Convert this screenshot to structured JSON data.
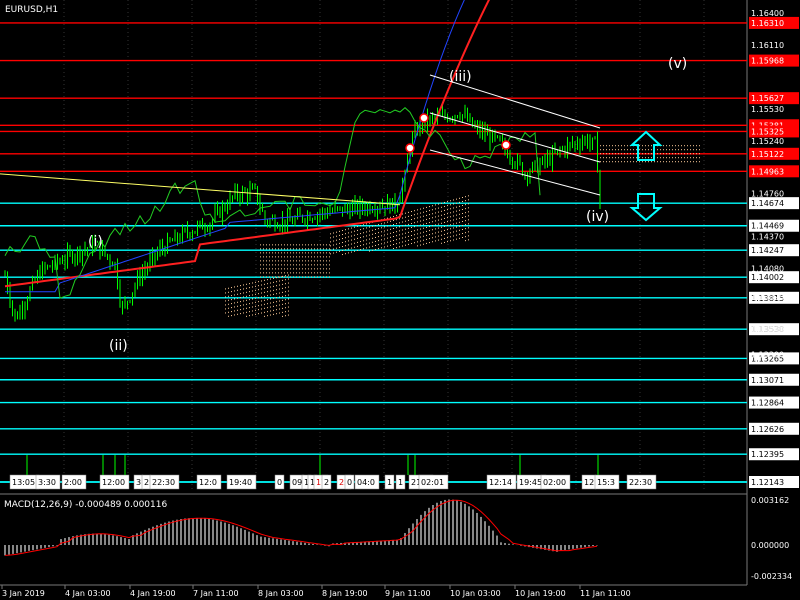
{
  "window": {
    "symbol_label": "EURUSD,H1"
  },
  "colors": {
    "background": "#000000",
    "bull_candle": "#00ff00",
    "red_line": "#ff0000",
    "cyan_line": "#00ffff",
    "ichimoku_green": "#22cc22",
    "ma_red": "#ff2020",
    "ma_blue": "#2244ff",
    "yellow_trend": "#ffff66",
    "channel": "#ffffff",
    "cloud_dots": "#ffcc99",
    "macd_hist": "#c0c0c0",
    "macd_signal": "#ff0000"
  },
  "price_axis": {
    "plain_labels": [
      "1.16400",
      "1.16110",
      "1.15530",
      "1.15240",
      "1.14760",
      "1.14370",
      "1.14080",
      "1.13820",
      "1.13530",
      "1.13300"
    ],
    "red_levels": [
      "1.16310",
      "1.15968",
      "1.15627",
      "1.15381",
      "1.15325",
      "1.15122",
      "1.14963"
    ],
    "cyan_levels": [
      "1.14674",
      "1.14469",
      "1.14247",
      "1.14002",
      "1.13815",
      "1.13530",
      "1.13265",
      "1.13071",
      "1.12864",
      "1.12626",
      "1.12395",
      "1.12143"
    ],
    "plain_prices": [
      1.164,
      1.1611,
      1.1553,
      1.1524,
      1.1476,
      1.1437,
      1.1408,
      1.1382,
      1.1353,
      1.133
    ],
    "red_prices": [
      1.1631,
      1.15968,
      1.15627,
      1.15381,
      1.15325,
      1.15122,
      1.14963
    ],
    "cyan_prices": [
      1.14674,
      1.14469,
      1.14247,
      1.14002,
      1.13815,
      1.1353,
      1.13265,
      1.13071,
      1.12864,
      1.12626,
      1.12395,
      1.12143
    ]
  },
  "wave_labels": {
    "i": "(i)",
    "ii": "(ii)",
    "iii": "(iii)",
    "iv": "(iv)",
    "v": "(v)"
  },
  "event_labels": [
    "13:05",
    "3:30",
    "2:00",
    "12:00",
    "3",
    "2",
    "22:30",
    "12:0",
    "19:40",
    "0",
    "09",
    "1",
    "1",
    "17",
    "2",
    "23",
    "0",
    "04:0",
    "1",
    "1",
    "21:0",
    "02:01",
    "12:14",
    "19:45",
    "02:00",
    "12",
    "15:3",
    "22:30"
  ],
  "macd": {
    "label": "MACD(12,26,9) -0.000489 0.000116",
    "axis_labels": [
      "0.003162",
      "0.000000",
      "-0.002334"
    ]
  },
  "time_axis": {
    "labels": [
      "3 Jan 2019",
      "4 Jan 03:00",
      "4 Jan 19:00",
      "7 Jan 11:00",
      "8 Jan 03:00",
      "8 Jan 19:00",
      "9 Jan 11:00",
      "10 Jan 03:00",
      "10 Jan 19:00",
      "11 Jan 11:00"
    ]
  }
}
